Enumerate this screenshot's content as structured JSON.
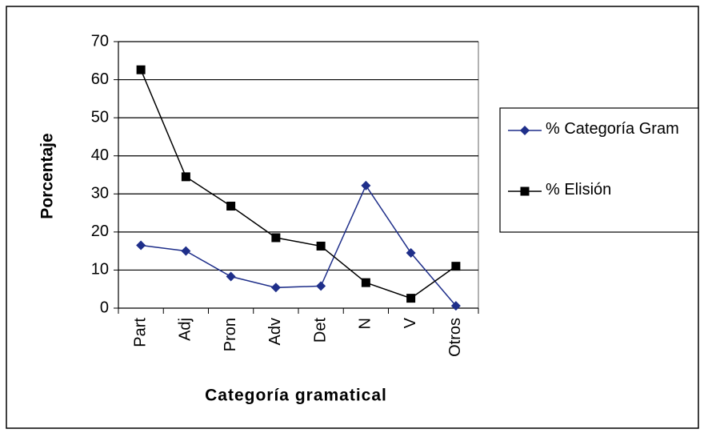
{
  "chart_data": {
    "type": "line",
    "x_label": "Categoría gramatical",
    "y_label": "Porcentaje",
    "categories": [
      "Part",
      "Adj",
      "Pron",
      "Adv",
      "Det",
      "N",
      "V",
      "Otros"
    ],
    "series": [
      {
        "name": "% Categoría Gram",
        "color": "#1f2f8a",
        "marker": "diamond",
        "values": [
          16.5,
          15,
          8.3,
          5.4,
          5.8,
          32.2,
          14.5,
          0.6
        ]
      },
      {
        "name": "% Elisión",
        "color": "#000000",
        "marker": "square",
        "values": [
          62.6,
          34.5,
          26.8,
          18.5,
          16.3,
          6.7,
          2.6,
          11
        ]
      }
    ],
    "ylim": [
      0,
      70
    ],
    "yticks": [
      0,
      10,
      20,
      30,
      40,
      50,
      60,
      70
    ],
    "grid": true,
    "legend": "right"
  }
}
